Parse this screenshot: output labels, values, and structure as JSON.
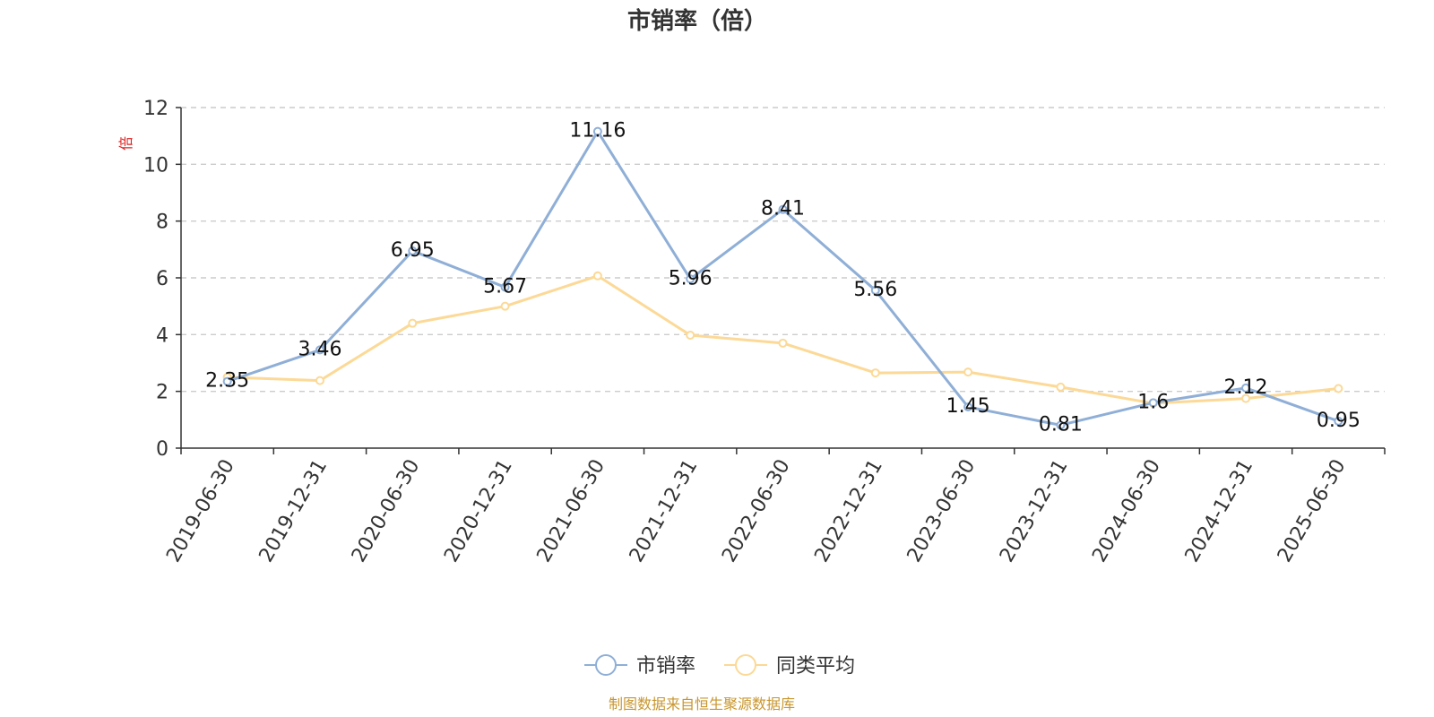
{
  "chart_data": {
    "type": "line",
    "title": "市销率（倍）",
    "ylabel": "倍",
    "ylim": [
      0,
      12
    ],
    "yticks": [
      0,
      2,
      4,
      6,
      8,
      10,
      12
    ],
    "grid": true,
    "legend_position": "bottom-center",
    "categories": [
      "2019-06-30",
      "2019-12-31",
      "2020-06-30",
      "2020-12-31",
      "2021-06-30",
      "2021-12-31",
      "2022-06-30",
      "2022-12-31",
      "2023-06-30",
      "2023-12-31",
      "2024-06-30",
      "2024-12-31",
      "2025-06-30"
    ],
    "series": [
      {
        "name": "市销率",
        "color": "#8fafd7",
        "values": [
          2.35,
          3.46,
          6.95,
          5.67,
          11.16,
          5.96,
          8.41,
          5.56,
          1.45,
          0.81,
          1.6,
          2.12,
          0.95
        ],
        "labels": [
          "2.35",
          "3.46",
          "6.95",
          "5.67",
          "11.16",
          "5.96",
          "8.41",
          "5.56",
          "1.45",
          "0.81",
          "1.6",
          "2.12",
          "0.95"
        ]
      },
      {
        "name": "同类平均",
        "color": "#fcd996",
        "values": [
          2.5,
          2.38,
          4.4,
          5.0,
          6.07,
          3.98,
          3.7,
          2.65,
          2.68,
          2.15,
          1.58,
          1.75,
          2.1
        ]
      }
    ]
  },
  "footer": {
    "source": "制图数据来自恒生聚源数据库",
    "color": "#c8962e"
  },
  "colors": {
    "ylabel": "#e02020",
    "grid": "#cccccc",
    "axis": "#333333"
  }
}
